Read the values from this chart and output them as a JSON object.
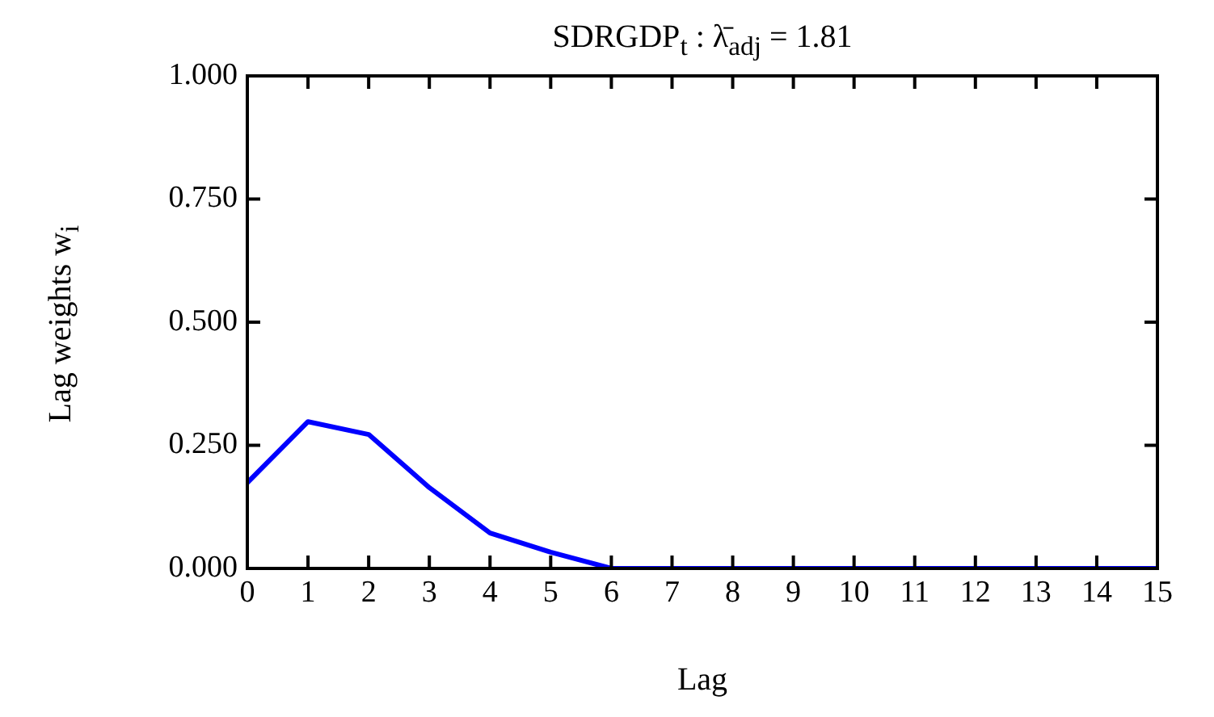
{
  "chart_data": {
    "type": "line",
    "title": "SDRGDP$_{t}$ : λ̄$_{adj}$ = 1.81",
    "xlabel": "Lag",
    "ylabel": "Lag weights w$_{i}$",
    "x": [
      0,
      1,
      2,
      3,
      4,
      5,
      6,
      7,
      8,
      9,
      10,
      11,
      12,
      13,
      14,
      15
    ],
    "series": [
      {
        "color": "#0000ff",
        "values": [
          0.174,
          0.298,
          0.272,
          0.164,
          0.072,
          0.033,
          0,
          0,
          0,
          0,
          0,
          0,
          0,
          0,
          0,
          0
        ]
      }
    ],
    "xlim": [
      0,
      15
    ],
    "xticks": [
      0,
      1,
      2,
      3,
      4,
      5,
      6,
      7,
      8,
      9,
      10,
      11,
      12,
      13,
      14,
      15
    ],
    "ylim": [
      0,
      1
    ],
    "yticks": [
      {
        "value": 0,
        "label": "0.000"
      },
      {
        "value": 0.25,
        "label": "0.250"
      },
      {
        "value": 0.5,
        "label": "0.500"
      },
      {
        "value": 0.75,
        "label": "0.750"
      },
      {
        "value": 1,
        "label": "1.000"
      }
    ],
    "grid": false,
    "legend": false,
    "marker": "none",
    "line_style": "solid"
  }
}
